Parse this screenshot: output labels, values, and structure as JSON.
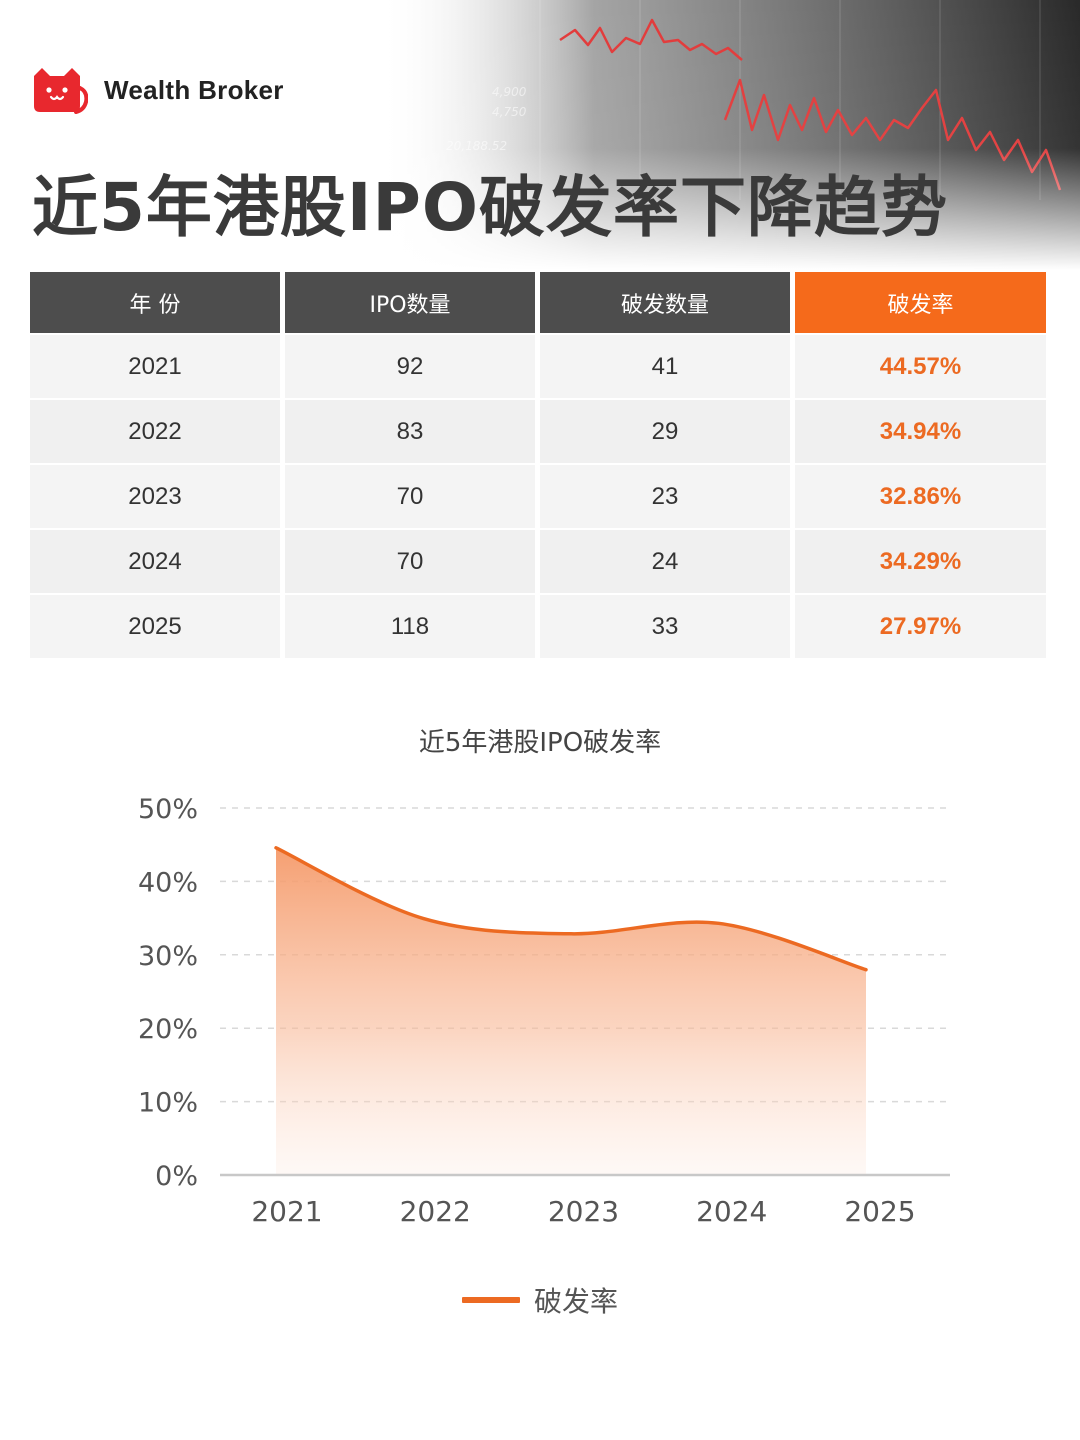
{
  "brand": {
    "name": "Wealth Broker",
    "logo_icon": "cat-logo-icon",
    "accent": "#e8282e"
  },
  "headline": "近5年港股IPO破发率下降趋势",
  "table": {
    "headers": [
      "年 份",
      "IPO数量",
      "破发数量",
      "破发率"
    ],
    "rows": [
      [
        "2021",
        "92",
        "41",
        "44.57%"
      ],
      [
        "2022",
        "83",
        "29",
        "34.94%"
      ],
      [
        "2023",
        "70",
        "23",
        "32.86%"
      ],
      [
        "2024",
        "70",
        "24",
        "34.29%"
      ],
      [
        "2025",
        "118",
        "33",
        "27.97%"
      ]
    ],
    "header_color": "#4d4d4d",
    "highlight_color": "#f56a1b"
  },
  "chart_data": {
    "type": "area",
    "title": "近5年港股IPO破发率",
    "categories": [
      "2021",
      "2022",
      "2023",
      "2024",
      "2025"
    ],
    "series": [
      {
        "name": "破发率",
        "values": [
          44.57,
          34.94,
          32.86,
          34.29,
          27.97
        ],
        "color": "#ec6a22"
      }
    ],
    "ylim": [
      0,
      50
    ],
    "yticks": [
      0,
      10,
      20,
      30,
      40,
      50
    ],
    "ytick_labels": [
      "0%",
      "10%",
      "20%",
      "30%",
      "40%",
      "50%"
    ],
    "grid": true,
    "legend": "bottom-center",
    "smooth": true
  }
}
